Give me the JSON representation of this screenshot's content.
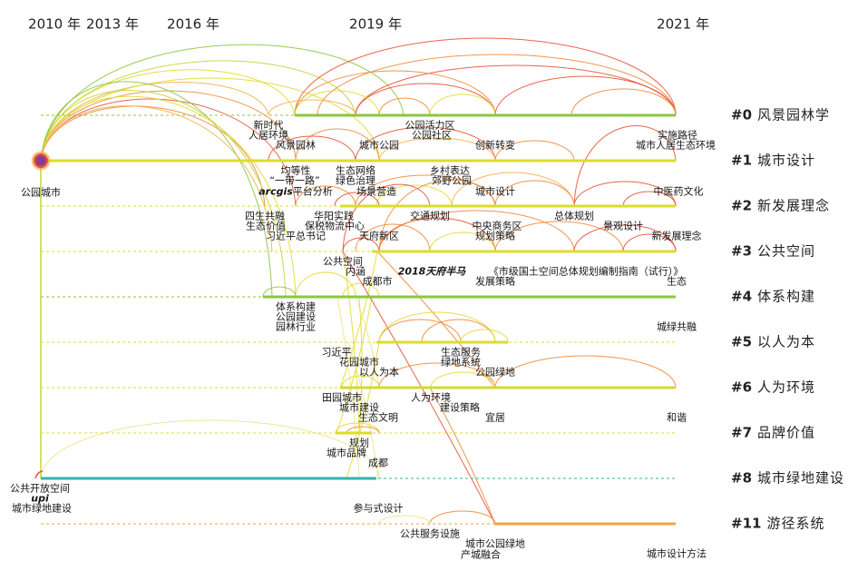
{
  "timeline": {
    "years": [
      "2010 年",
      "2013 年",
      "2016 年",
      "2019 年",
      "2021 年"
    ]
  },
  "clusters": [
    {
      "id": "#0",
      "name": "风景园林学",
      "color": "#8cc63e"
    },
    {
      "id": "#1",
      "name": "城市设计",
      "color": "#dcdc2a"
    },
    {
      "id": "#2",
      "name": "新发展理念",
      "color": "#dcdc2a"
    },
    {
      "id": "#3",
      "name": "公共空间",
      "color": "#dcdc2a"
    },
    {
      "id": "#4",
      "name": "体系构建",
      "color": "#8cc63e"
    },
    {
      "id": "#5",
      "name": "以人为本",
      "color": "#dcdc2a"
    },
    {
      "id": "#6",
      "name": "人为环境",
      "color": "#d4d92c"
    },
    {
      "id": "#7",
      "name": "品牌价值",
      "color": "#dcdc2a"
    },
    {
      "id": "#8",
      "name": "城市绿地建设",
      "color": "#34b3ae"
    },
    {
      "id": "#11",
      "name": "游径系统",
      "color": "#f2a23a"
    }
  ],
  "keywords": {
    "c0": [
      "新时代",
      "人居环境",
      "风景园林",
      "城市公园",
      "公园活力区",
      "公园社区",
      "创新转变",
      "实施路径",
      "城市人居生态环境"
    ],
    "c1": [
      "公园城市",
      "均等性",
      "“一带一路”",
      "arcgis",
      "平台分析",
      "生态网络",
      "绿色治理",
      "场景营造",
      "乡村表达",
      "郊野公园",
      "城市设计",
      "中医药文化"
    ],
    "c2": [
      "四生共融",
      "生态价值",
      "习近平总书记",
      "华阳实践",
      "保税物流中心",
      "天府新区",
      "交通规划",
      "中央商务区",
      "规划策略",
      "总体规划",
      "景观设计",
      "新发展理念"
    ],
    "c3": [
      "公共空间",
      "内涵",
      "成都市",
      "2018天府半马",
      "《市级国土空间总体规划编制指南（试行）》",
      "发展策略",
      "生态"
    ],
    "c4": [
      "体系构建",
      "公园建设",
      "园林行业",
      "城绿共融"
    ],
    "c5": [
      "习近平",
      "花园城市",
      "以人为本",
      "生态服务",
      "绿地系统",
      "公园绿地"
    ],
    "c6": [
      "田园城市",
      "城市建设",
      "生态文明",
      "人为环境",
      "建设策略",
      "宜居",
      "和谐"
    ],
    "c7": [
      "规划",
      "城市品牌",
      "成都"
    ],
    "c8": [
      "公共开放空间",
      "upi",
      "城市绿地建设",
      "参与式设计"
    ],
    "c11": [
      "公共服务设施",
      "城市公园绿地",
      "产城融合",
      "城市设计方法"
    ]
  },
  "link_colors": {
    "green": "#8dc63f",
    "yellowgreen": "#c3d53c",
    "yellow": "#e2dc2c",
    "paleyellow": "#ebe68e",
    "lightorange": "#f4b04a",
    "orange": "#ef8a3a",
    "red": "#e7533b"
  },
  "hub_colors": {
    "fill": "#8e3b8f",
    "ring": "#e8553a",
    "halo": "#f6b24a"
  }
}
